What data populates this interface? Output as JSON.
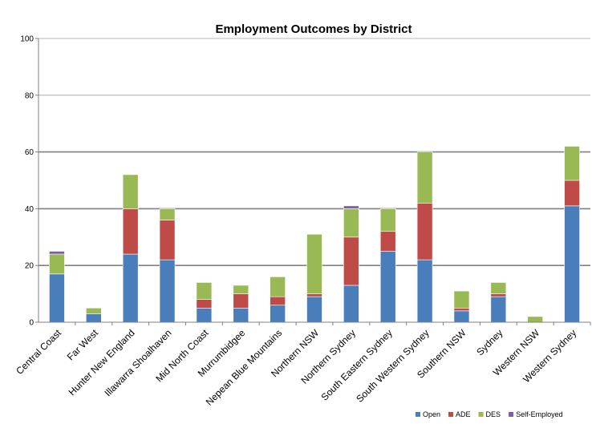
{
  "chart_data": {
    "type": "bar",
    "stacked": true,
    "title": "Employment Outcomes by District",
    "xlabel": "",
    "ylabel": "",
    "ylim": [
      0,
      100
    ],
    "yticks": [
      0,
      20,
      40,
      60,
      80,
      100
    ],
    "grid": true,
    "legend_position": "bottom-right",
    "categories": [
      "Central Coast",
      "Far West",
      "Hunter New England",
      "Illawarra Shoalhaven",
      "Mid North Coast",
      "Murrumbidgee",
      "Nepean Blue Mountains",
      "Northern NSW",
      "Northern Sydney",
      "South Eastern Sydney",
      "South Western Sydney",
      "Southern NSW",
      "Sydney",
      "Western NSW",
      "Western Sydney"
    ],
    "series": [
      {
        "name": "Open",
        "color": "#4a7ebb",
        "values": [
          17,
          3,
          24,
          22,
          5,
          5,
          6,
          9,
          13,
          25,
          22,
          4,
          9,
          0,
          41
        ]
      },
      {
        "name": "ADE",
        "color": "#be4b48",
        "values": [
          0,
          0,
          16,
          14,
          3,
          5,
          3,
          1,
          17,
          7,
          20,
          1,
          1,
          0,
          9
        ]
      },
      {
        "name": "DES",
        "color": "#98b954",
        "values": [
          7,
          2,
          12,
          4,
          6,
          3,
          7,
          21,
          10,
          8,
          18,
          6,
          4,
          2,
          12
        ]
      },
      {
        "name": "Self-Employed",
        "color": "#7d60a0",
        "values": [
          1,
          0,
          0,
          0,
          0,
          0,
          0,
          0,
          1,
          0,
          0,
          0,
          0,
          0,
          0
        ]
      }
    ]
  }
}
